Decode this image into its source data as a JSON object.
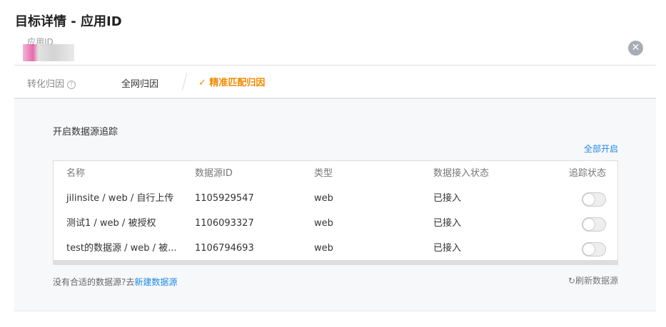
{
  "title": "目标详情 - 应用ID",
  "app_id_label": "应用ID",
  "attribution": {
    "label": "转化归因",
    "options": [
      "全网归因",
      "精准匹配归因"
    ],
    "selected": "精准匹配归因"
  },
  "panel": {
    "title": "开启数据源追踪",
    "enable_all": "全部开启",
    "columns": [
      "名称",
      "数据源ID",
      "类型",
      "数据接入状态",
      "追踪状态"
    ],
    "rows": [
      {
        "name": "jilinsite / web / 自行上传",
        "id": "1105929547",
        "type": "web",
        "status": "已接入",
        "tracking": false
      },
      {
        "name": "测试1 / web / 被授权",
        "id": "1106093327",
        "type": "web",
        "status": "已接入",
        "tracking": false
      },
      {
        "name": "test的数据源 / web / 被...",
        "id": "1106794693",
        "type": "web",
        "status": "已接入",
        "tracking": false
      }
    ],
    "footer_text": "没有合适的数据源?去",
    "footer_link": "新建数据源",
    "refresh": "刷新数据源"
  },
  "colors": {
    "accent": "#f08a00",
    "link": "#1e88e5"
  }
}
